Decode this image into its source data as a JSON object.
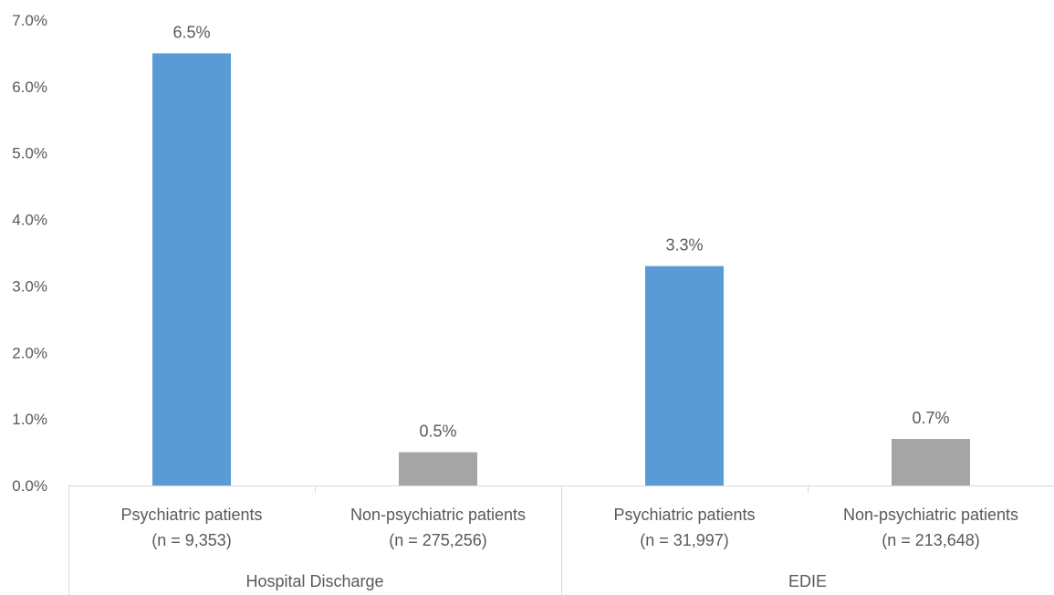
{
  "chart_data": {
    "type": "bar",
    "title": "",
    "xlabel": "",
    "ylabel": "",
    "ylim": [
      0,
      7
    ],
    "y_ticks": [
      "0.0%",
      "1.0%",
      "2.0%",
      "3.0%",
      "4.0%",
      "5.0%",
      "6.0%",
      "7.0%"
    ],
    "groups": [
      {
        "label": "Hospital Discharge",
        "categories": [
          0,
          1
        ]
      },
      {
        "label": "EDIE",
        "categories": [
          2,
          3
        ]
      }
    ],
    "categories": [
      {
        "line1": "Psychiatric patients",
        "line2": "(n = 9,353)"
      },
      {
        "line1": "Non-psychiatric patients",
        "line2": "(n = 275,256)"
      },
      {
        "line1": "Psychiatric patients",
        "line2": "(n = 31,997)"
      },
      {
        "line1": "Non-psychiatric patients",
        "line2": "(n = 213,648)"
      }
    ],
    "values": [
      6.5,
      0.5,
      3.3,
      0.7
    ],
    "data_labels": [
      "6.5%",
      "0.5%",
      "3.3%",
      "0.7%"
    ],
    "colors": [
      "#5b9bd5",
      "#a5a5a5",
      "#5b9bd5",
      "#a5a5a5"
    ],
    "grid": false,
    "legend": "none"
  }
}
